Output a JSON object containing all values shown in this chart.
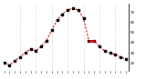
{
  "hours": [
    0,
    1,
    2,
    3,
    4,
    5,
    6,
    7,
    8,
    9,
    10,
    11,
    12,
    13,
    14,
    15,
    16,
    17,
    18,
    19,
    20,
    21,
    22,
    23
  ],
  "values": [
    20,
    18,
    22,
    26,
    30,
    34,
    32,
    36,
    42,
    52,
    62,
    68,
    72,
    74,
    72,
    64,
    42,
    42,
    36,
    32,
    30,
    28,
    26,
    24
  ],
  "ylim": [
    12,
    78
  ],
  "xlim": [
    -0.5,
    23.5
  ],
  "line_color": "#cc0000",
  "marker_color": "#000000",
  "bg_color": "#ffffff",
  "grid_color": "#888888",
  "ytick_positions": [
    20,
    30,
    40,
    50,
    60,
    70
  ],
  "ytick_labels": [
    "20",
    "30",
    "40",
    "50",
    "60",
    "70"
  ],
  "flat_segment": [
    16.0,
    17.2,
    42
  ],
  "vgrid_x": [
    3,
    6,
    9,
    12,
    15,
    18,
    21
  ]
}
